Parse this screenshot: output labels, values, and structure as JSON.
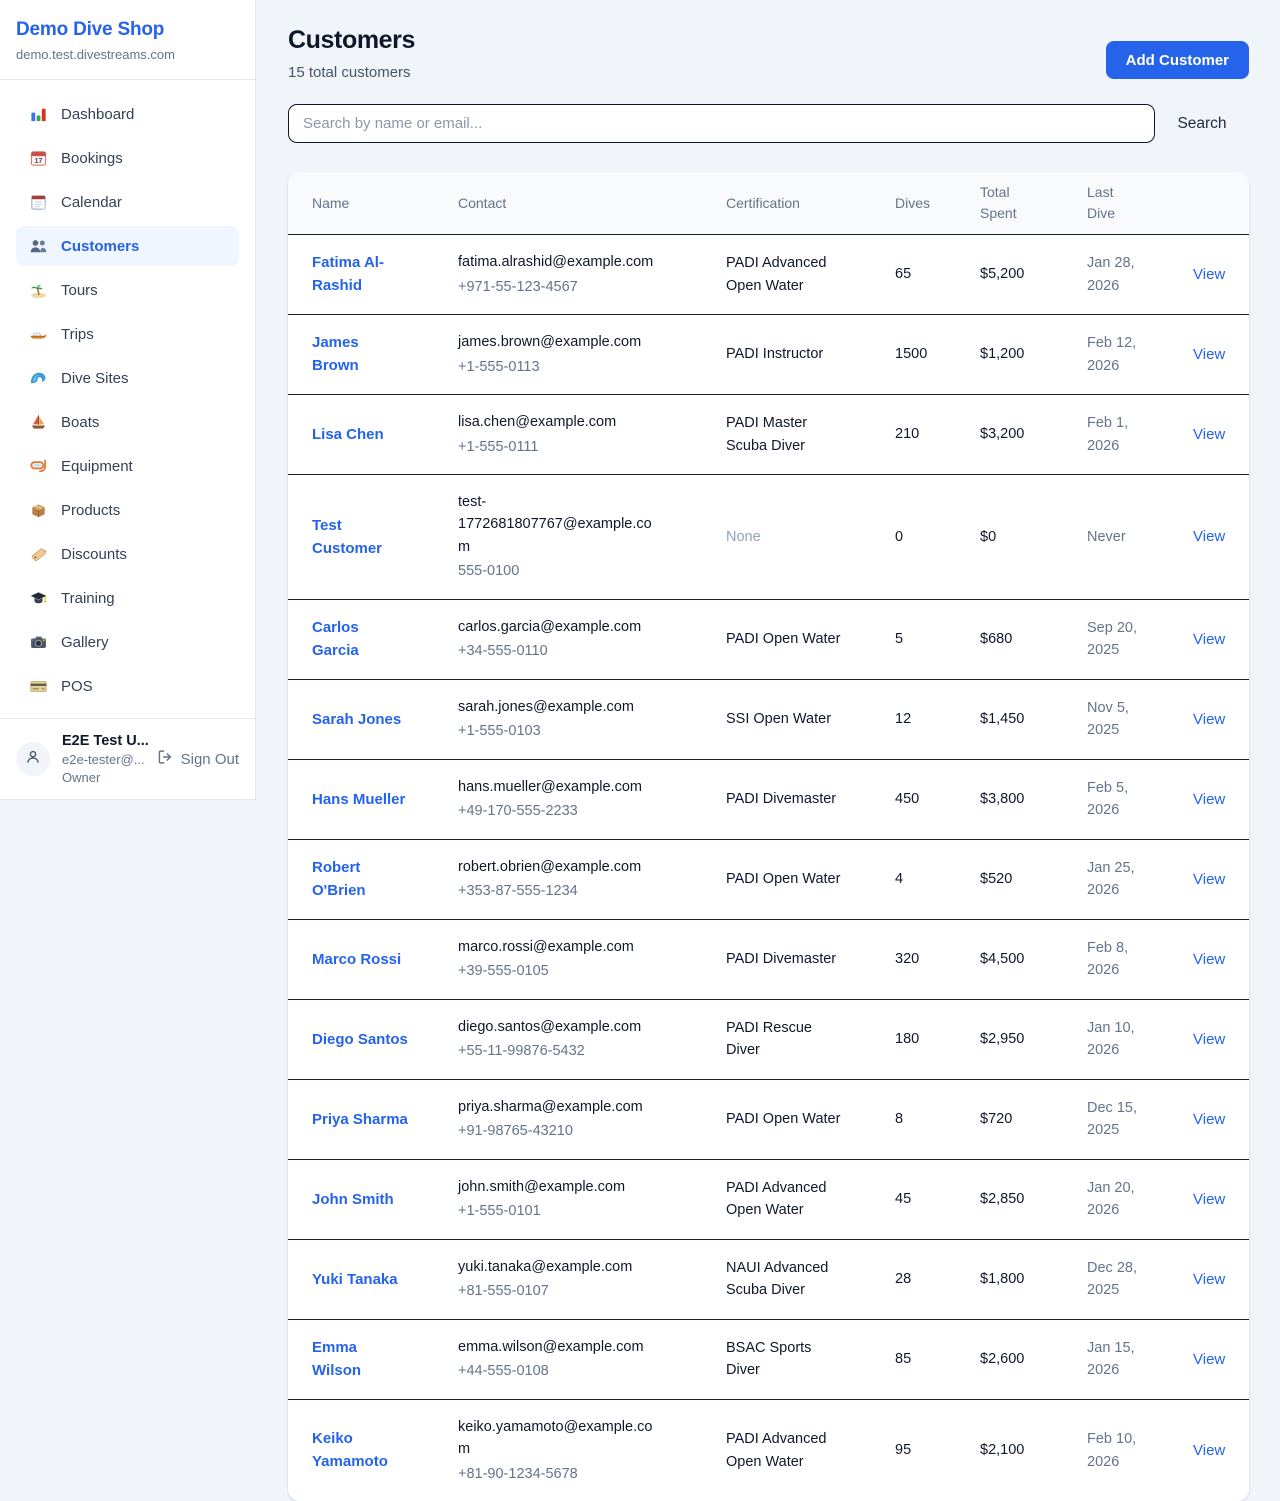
{
  "sidebar": {
    "shop_name": "Demo Dive Shop",
    "shop_domain": "demo.test.divestreams.com",
    "items": [
      {
        "label": "Dashboard",
        "icon": "bar-chart-icon",
        "active": false
      },
      {
        "label": "Bookings",
        "icon": "bookings-calendar-icon",
        "active": false
      },
      {
        "label": "Calendar",
        "icon": "calendar-icon",
        "active": false
      },
      {
        "label": "Customers",
        "icon": "people-icon",
        "active": true
      },
      {
        "label": "Tours",
        "icon": "island-icon",
        "active": false
      },
      {
        "label": "Trips",
        "icon": "speedboat-icon",
        "active": false
      },
      {
        "label": "Dive Sites",
        "icon": "wave-icon",
        "active": false
      },
      {
        "label": "Boats",
        "icon": "sailboat-icon",
        "active": false
      },
      {
        "label": "Equipment",
        "icon": "dive-mask-icon",
        "active": false
      },
      {
        "label": "Products",
        "icon": "package-icon",
        "active": false
      },
      {
        "label": "Discounts",
        "icon": "tag-icon",
        "active": false
      },
      {
        "label": "Training",
        "icon": "graduation-cap-icon",
        "active": false
      },
      {
        "label": "Gallery",
        "icon": "camera-icon",
        "active": false
      },
      {
        "label": "POS",
        "icon": "credit-card-icon",
        "active": false
      }
    ],
    "user": {
      "name": "E2E Test U...",
      "email": "e2e-tester@...",
      "role": "Owner",
      "sign_out_label": "Sign Out"
    }
  },
  "header": {
    "title": "Customers",
    "subtitle": "15 total customers",
    "add_button_label": "Add Customer"
  },
  "search": {
    "placeholder": "Search by name or email...",
    "button_label": "Search"
  },
  "table": {
    "columns": [
      "Name",
      "Contact",
      "Certification",
      "Dives",
      "Total Spent",
      "Last Dive"
    ],
    "action_label": "View",
    "rows": [
      {
        "name": "Fatima Al-Rashid",
        "email": "fatima.alrashid@example.com",
        "phone": "+971-55-123-4567",
        "certification": "PADI Advanced Open Water",
        "dives": "65",
        "total_spent": "$5,200",
        "last_dive": "Jan 28, 2026",
        "action": "View"
      },
      {
        "name": "James Brown",
        "email": "james.brown@example.com",
        "phone": "+1-555-0113",
        "certification": "PADI Instructor",
        "dives": "1500",
        "total_spent": "$1,200",
        "last_dive": "Feb 12, 2026",
        "action": "View"
      },
      {
        "name": "Lisa Chen",
        "email": "lisa.chen@example.com",
        "phone": "+1-555-0111",
        "certification": "PADI Master Scuba Diver",
        "dives": "210",
        "total_spent": "$3,200",
        "last_dive": "Feb 1, 2026",
        "action": "View"
      },
      {
        "name": "Test Customer",
        "email": "test-1772681807767@example.com",
        "phone": "555-0100",
        "certification": "None",
        "dives": "0",
        "total_spent": "$0",
        "last_dive": "Never",
        "action": "View"
      },
      {
        "name": "Carlos Garcia",
        "email": "carlos.garcia@example.com",
        "phone": "+34-555-0110",
        "certification": "PADI Open Water",
        "dives": "5",
        "total_spent": "$680",
        "last_dive": "Sep 20, 2025",
        "action": "View"
      },
      {
        "name": "Sarah Jones",
        "email": "sarah.jones@example.com",
        "phone": "+1-555-0103",
        "certification": "SSI Open Water",
        "dives": "12",
        "total_spent": "$1,450",
        "last_dive": "Nov 5, 2025",
        "action": "View"
      },
      {
        "name": "Hans Mueller",
        "email": "hans.mueller@example.com",
        "phone": "+49-170-555-2233",
        "certification": "PADI Divemaster",
        "dives": "450",
        "total_spent": "$3,800",
        "last_dive": "Feb 5, 2026",
        "action": "View"
      },
      {
        "name": "Robert O'Brien",
        "email": "robert.obrien@example.com",
        "phone": "+353-87-555-1234",
        "certification": "PADI Open Water",
        "dives": "4",
        "total_spent": "$520",
        "last_dive": "Jan 25, 2026",
        "action": "View"
      },
      {
        "name": "Marco Rossi",
        "email": "marco.rossi@example.com",
        "phone": "+39-555-0105",
        "certification": "PADI Divemaster",
        "dives": "320",
        "total_spent": "$4,500",
        "last_dive": "Feb 8, 2026",
        "action": "View"
      },
      {
        "name": "Diego Santos",
        "email": "diego.santos@example.com",
        "phone": "+55-11-99876-5432",
        "certification": "PADI Rescue Diver",
        "dives": "180",
        "total_spent": "$2,950",
        "last_dive": "Jan 10, 2026",
        "action": "View"
      },
      {
        "name": "Priya Sharma",
        "email": "priya.sharma@example.com",
        "phone": "+91-98765-43210",
        "certification": "PADI Open Water",
        "dives": "8",
        "total_spent": "$720",
        "last_dive": "Dec 15, 2025",
        "action": "View"
      },
      {
        "name": "John Smith",
        "email": "john.smith@example.com",
        "phone": "+1-555-0101",
        "certification": "PADI Advanced Open Water",
        "dives": "45",
        "total_spent": "$2,850",
        "last_dive": "Jan 20, 2026",
        "action": "View"
      },
      {
        "name": "Yuki Tanaka",
        "email": "yuki.tanaka@example.com",
        "phone": "+81-555-0107",
        "certification": "NAUI Advanced Scuba Diver",
        "dives": "28",
        "total_spent": "$1,800",
        "last_dive": "Dec 28, 2025",
        "action": "View"
      },
      {
        "name": "Emma Wilson",
        "email": "emma.wilson@example.com",
        "phone": "+44-555-0108",
        "certification": "BSAC Sports Diver",
        "dives": "85",
        "total_spent": "$2,600",
        "last_dive": "Jan 15, 2026",
        "action": "View"
      },
      {
        "name": "Keiko Yamamoto",
        "email": "keiko.yamamoto@example.com",
        "phone": "+81-90-1234-5678",
        "certification": "PADI Advanced Open Water",
        "dives": "95",
        "total_spent": "$2,100",
        "last_dive": "Feb 10, 2026",
        "action": "View"
      }
    ]
  },
  "colors": {
    "accent": "#2563eb",
    "selected_nav_bg": "#eff6ff",
    "dark_text": "#0f172a",
    "muted_text": "#64748b",
    "row_divider": "#161f2e"
  }
}
